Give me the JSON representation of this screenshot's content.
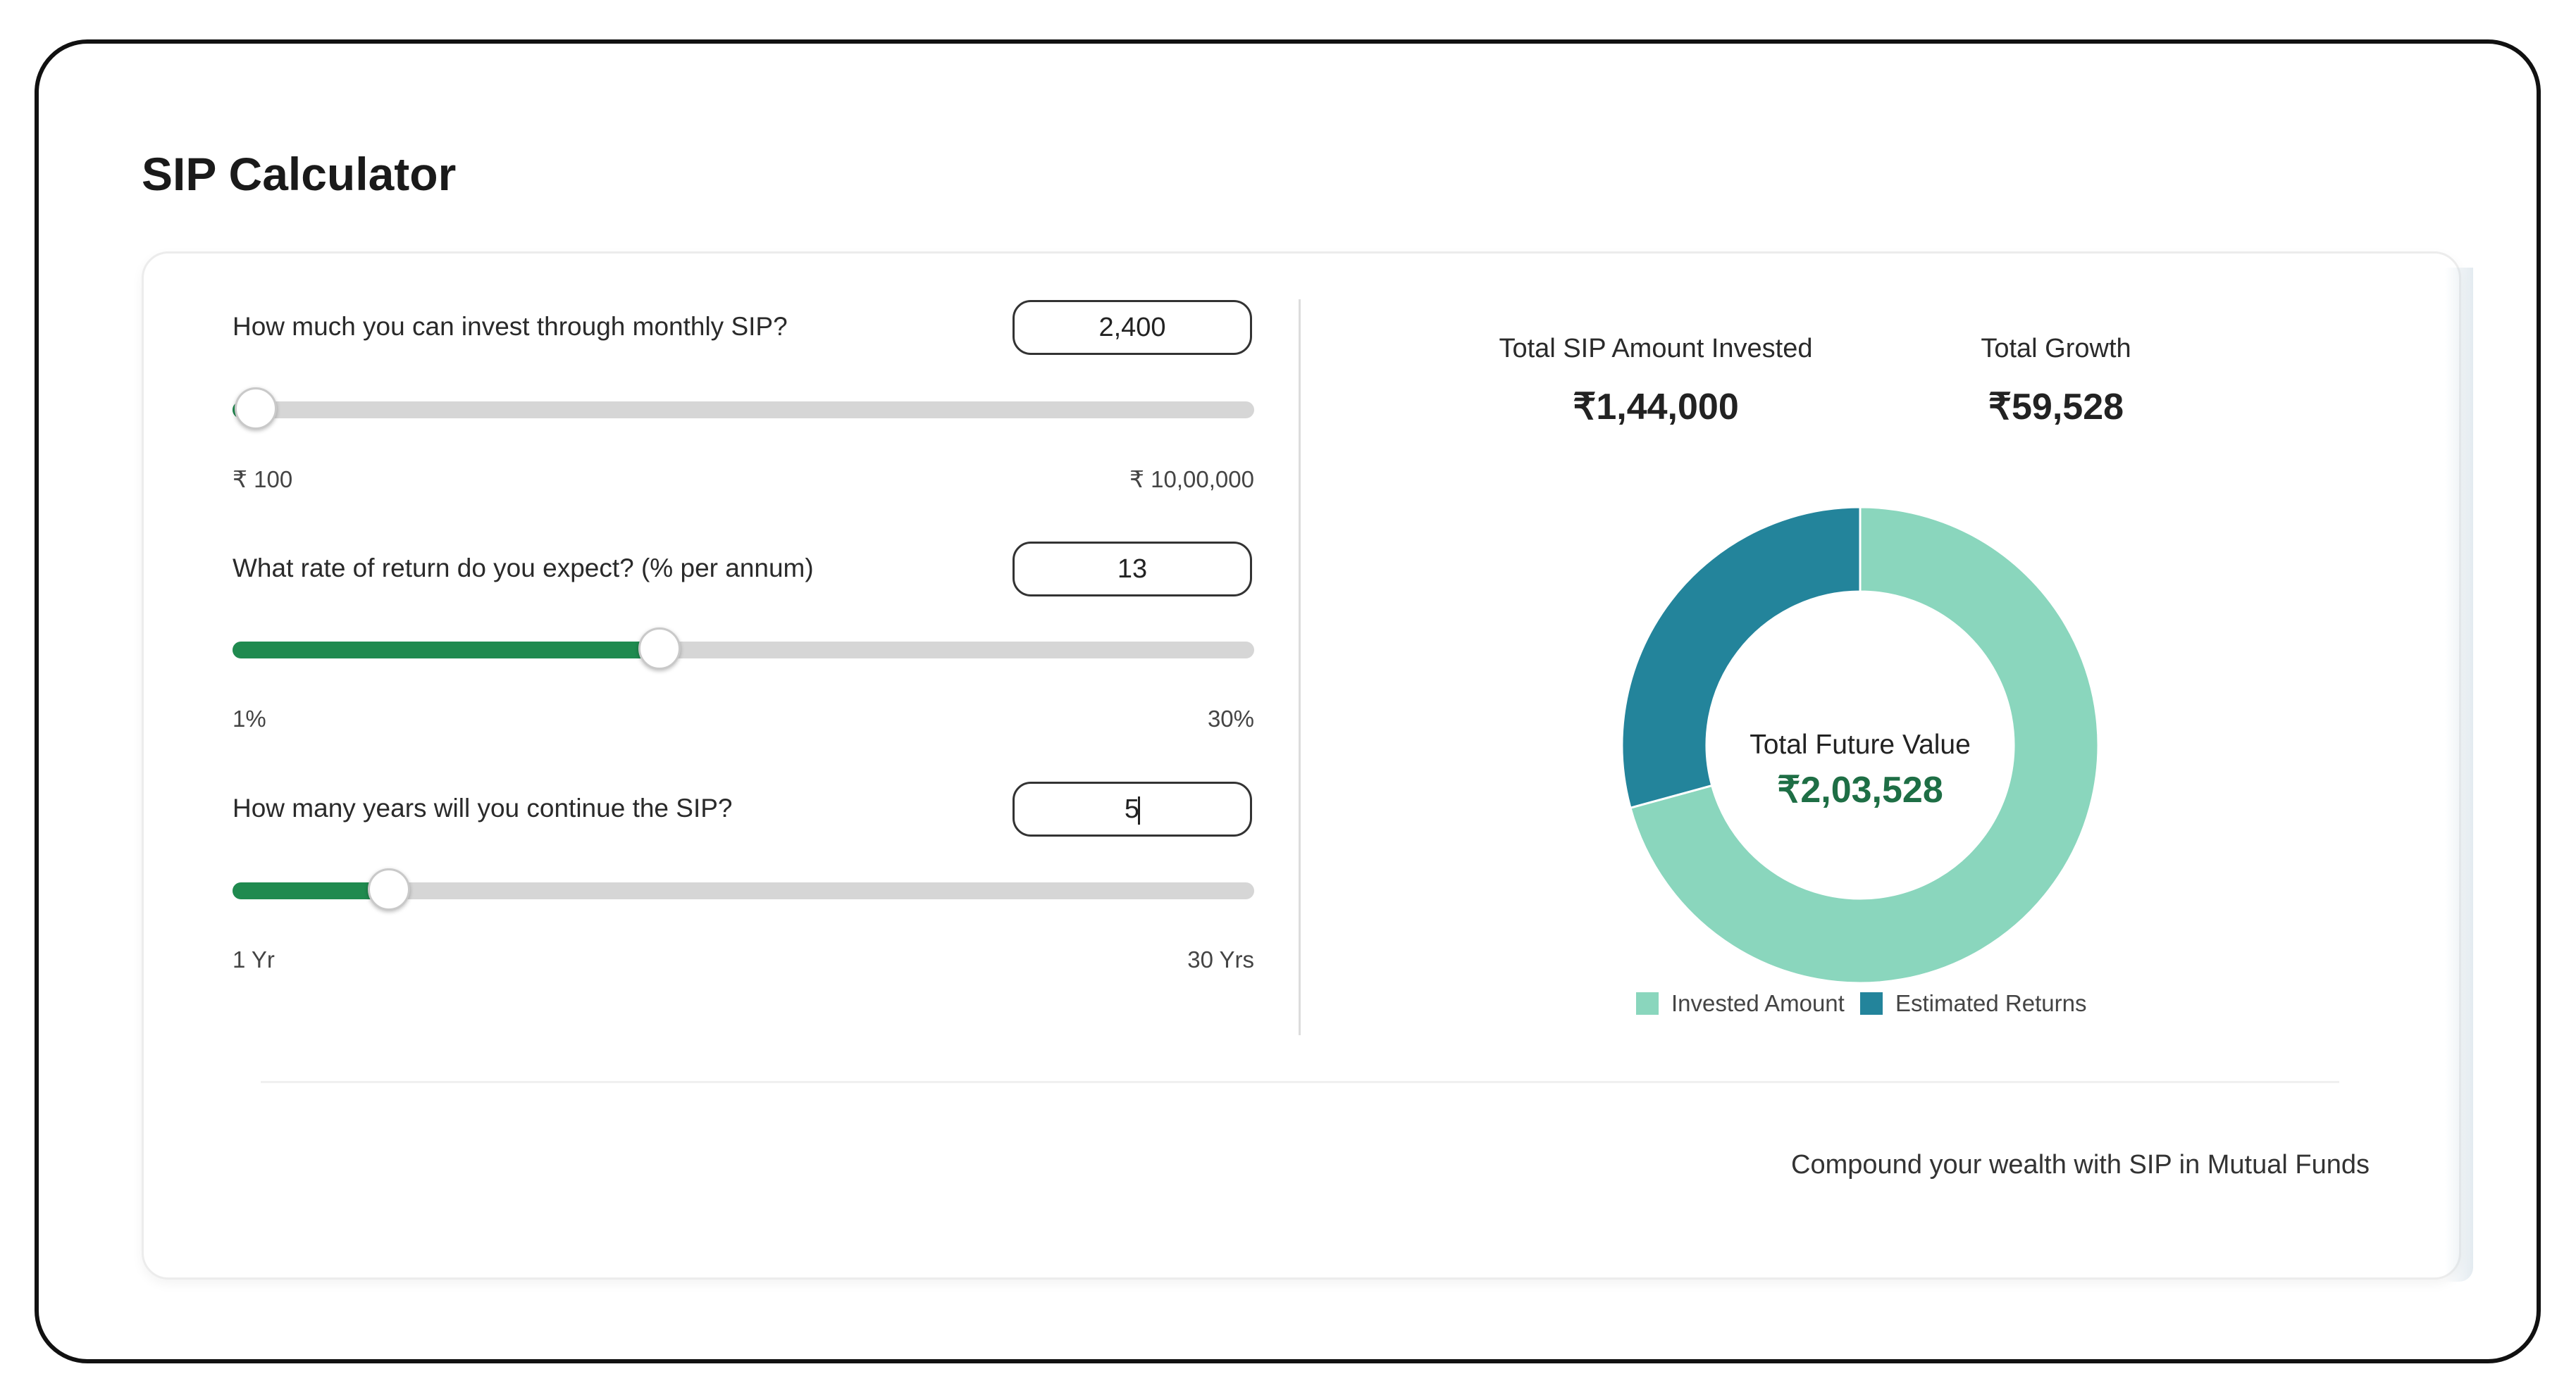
{
  "page": {
    "title": "SIP Calculator"
  },
  "inputs": [
    {
      "question": "How much you can invest through monthly SIP?",
      "value": "2,400",
      "min_label": "₹ 100",
      "max_label": "₹ 10,00,000",
      "slider_fraction": 0.023
    },
    {
      "question": "What rate of return do you expect? (% per annum)",
      "value": "13",
      "min_label": "1%",
      "max_label": "30%",
      "slider_fraction": 0.418
    },
    {
      "question": "How many years will you continue the SIP?",
      "value": "5",
      "min_label": "1 Yr",
      "max_label": "30 Yrs",
      "slider_fraction": 0.153
    }
  ],
  "summary": {
    "invested_label": "Total SIP Amount Invested",
    "invested_value": "₹1,44,000",
    "growth_label": "Total Growth",
    "growth_value": "₹59,528"
  },
  "chart_data": {
    "type": "pie",
    "categories": [
      "Invested Amount",
      "Estimated Returns"
    ],
    "values": [
      144000,
      59528
    ],
    "colors": [
      "#8ad6bd",
      "#23849b"
    ],
    "legend": "bottom",
    "center_title": "Total Future Value",
    "center_value": "₹2,03,528"
  },
  "footer": {
    "tagline": "Compound your wealth with SIP in Mutual Funds"
  },
  "colors": {
    "slider_fill": "#1f8a4f",
    "future_value": "#1e6e45"
  }
}
